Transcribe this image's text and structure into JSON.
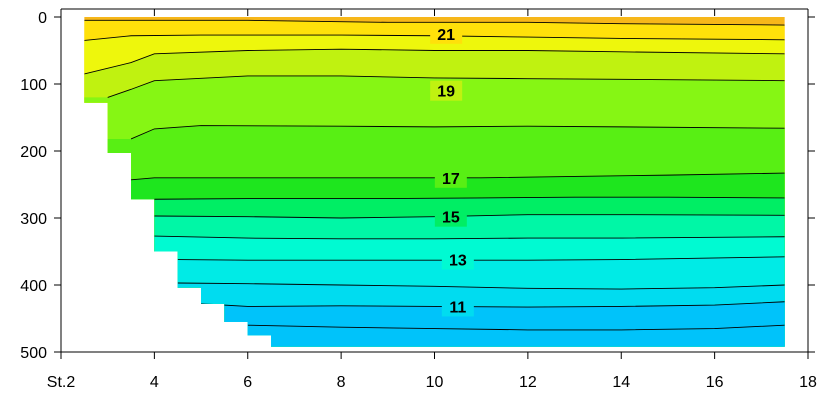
{
  "chart_data": {
    "type": "heatmap",
    "title": "",
    "xlabel": "",
    "ylabel": "",
    "x_ticks": [
      {
        "value": 2,
        "label": "St.2"
      },
      {
        "value": 4,
        "label": "4"
      },
      {
        "value": 6,
        "label": "6"
      },
      {
        "value": 8,
        "label": "8"
      },
      {
        "value": 10,
        "label": "10"
      },
      {
        "value": 12,
        "label": "12"
      },
      {
        "value": 14,
        "label": "14"
      },
      {
        "value": 16,
        "label": "16"
      },
      {
        "value": 18,
        "label": "18"
      }
    ],
    "y_ticks": [
      {
        "value": 0,
        "label": "0"
      },
      {
        "value": 100,
        "label": "100"
      },
      {
        "value": 200,
        "label": "200"
      },
      {
        "value": 300,
        "label": "300"
      },
      {
        "value": 400,
        "label": "400"
      },
      {
        "value": 500,
        "label": "500"
      }
    ],
    "xlim": [
      2,
      18
    ],
    "ylim": [
      0,
      500
    ],
    "y_inverted": true,
    "grid": false,
    "bottom_profile": [
      [
        2.5,
        128
      ],
      [
        3.0,
        128
      ],
      [
        3.0,
        203
      ],
      [
        3.5,
        203
      ],
      [
        3.5,
        272
      ],
      [
        4.0,
        272
      ],
      [
        4.0,
        350
      ],
      [
        4.5,
        350
      ],
      [
        4.5,
        404
      ],
      [
        5.0,
        404
      ],
      [
        5.0,
        428
      ],
      [
        5.5,
        428
      ],
      [
        5.5,
        455
      ],
      [
        6.0,
        455
      ],
      [
        6.0,
        475
      ],
      [
        6.5,
        475
      ],
      [
        6.5,
        492
      ],
      [
        17.5,
        492
      ]
    ],
    "bands": [
      {
        "range": "above 21",
        "color": "#F7B71A"
      },
      {
        "range": "20-21",
        "color": "#FFE10A"
      },
      {
        "range": "19-20",
        "color": "#EEF70C"
      },
      {
        "range": "18-19",
        "color": "#C0F210"
      },
      {
        "range": "17-18",
        "color": "#86F614"
      },
      {
        "range": "16-17",
        "color": "#58EF14"
      },
      {
        "range": "15-16",
        "color": "#1EE61E"
      },
      {
        "range": "14-15",
        "color": "#00EE64"
      },
      {
        "range": "13-14",
        "color": "#00F7A6"
      },
      {
        "range": "12-13",
        "color": "#00FAD2"
      },
      {
        "range": "11-12",
        "color": "#00EBE6"
      },
      {
        "range": "10-11",
        "color": "#00DCF0"
      },
      {
        "range": "below 10",
        "color": "#00C3FA"
      }
    ],
    "isolines": [
      {
        "value": 21,
        "label": "",
        "points": [
          [
            2.5,
            5
          ],
          [
            6,
            5
          ],
          [
            9,
            8
          ],
          [
            12,
            8
          ],
          [
            14,
            10
          ],
          [
            17.5,
            12
          ]
        ]
      },
      {
        "value": 20.5,
        "label": "21",
        "points": [
          [
            2.5,
            35
          ],
          [
            3.5,
            28
          ],
          [
            5,
            27
          ],
          [
            8,
            27
          ],
          [
            10,
            28
          ],
          [
            12,
            30
          ],
          [
            14,
            32
          ],
          [
            17.5,
            34
          ]
        ]
      },
      {
        "value": 20,
        "label": "",
        "points": [
          [
            2.5,
            85
          ],
          [
            3.5,
            68
          ],
          [
            4,
            55
          ],
          [
            6,
            50
          ],
          [
            8,
            48
          ],
          [
            10,
            50
          ],
          [
            12,
            50
          ],
          [
            14,
            52
          ],
          [
            17.5,
            55
          ]
        ]
      },
      {
        "value": 19,
        "label": "19",
        "points": [
          [
            3,
            120
          ],
          [
            3.5,
            108
          ],
          [
            4,
            95
          ],
          [
            6,
            88
          ],
          [
            8,
            88
          ],
          [
            10,
            91
          ],
          [
            12,
            92
          ],
          [
            14,
            93
          ],
          [
            17.5,
            95
          ]
        ]
      },
      {
        "value": 18,
        "label": "",
        "points": [
          [
            3.5,
            182
          ],
          [
            4,
            167
          ],
          [
            5,
            162
          ],
          [
            8,
            163
          ],
          [
            10,
            164
          ],
          [
            12,
            163
          ],
          [
            14,
            164
          ],
          [
            17.5,
            166
          ]
        ]
      },
      {
        "value": 17,
        "label": "17",
        "points": [
          [
            3.5,
            243
          ],
          [
            4,
            240
          ],
          [
            6,
            240
          ],
          [
            9,
            240
          ],
          [
            11,
            240
          ],
          [
            13,
            238
          ],
          [
            15,
            236
          ],
          [
            17.5,
            233
          ]
        ]
      },
      {
        "value": 16,
        "label": "",
        "points": [
          [
            4,
            272
          ],
          [
            6,
            271
          ],
          [
            9,
            271
          ],
          [
            11,
            270
          ],
          [
            13,
            269
          ],
          [
            15,
            269
          ],
          [
            17.5,
            270
          ]
        ]
      },
      {
        "value": 15,
        "label": "15",
        "points": [
          [
            4,
            297
          ],
          [
            6,
            298
          ],
          [
            8,
            300
          ],
          [
            10,
            298
          ],
          [
            12,
            295
          ],
          [
            14,
            295
          ],
          [
            17.5,
            296
          ]
        ]
      },
      {
        "value": 14,
        "label": "",
        "points": [
          [
            4,
            327
          ],
          [
            6,
            330
          ],
          [
            8,
            331
          ],
          [
            10,
            331
          ],
          [
            12,
            330
          ],
          [
            14,
            330
          ],
          [
            17.5,
            328
          ]
        ]
      },
      {
        "value": 13,
        "label": "13",
        "points": [
          [
            4.5,
            362
          ],
          [
            6,
            363
          ],
          [
            8,
            363
          ],
          [
            10,
            363
          ],
          [
            12,
            363
          ],
          [
            14,
            362
          ],
          [
            17.5,
            358
          ]
        ]
      },
      {
        "value": 12,
        "label": "",
        "points": [
          [
            4.5,
            397
          ],
          [
            6,
            398
          ],
          [
            8,
            400
          ],
          [
            10,
            402
          ],
          [
            12,
            405
          ],
          [
            14,
            406
          ],
          [
            16,
            404
          ],
          [
            17.5,
            400
          ]
        ]
      },
      {
        "value": 11,
        "label": "11",
        "points": [
          [
            5,
            428
          ],
          [
            6,
            432
          ],
          [
            8,
            431
          ],
          [
            10,
            432
          ],
          [
            12,
            433
          ],
          [
            14,
            432
          ],
          [
            16,
            430
          ],
          [
            17.5,
            425
          ]
        ]
      },
      {
        "value": 10,
        "label": "",
        "points": [
          [
            6,
            460
          ],
          [
            8,
            463
          ],
          [
            10,
            465
          ],
          [
            12,
            467
          ],
          [
            14,
            467
          ],
          [
            16,
            465
          ],
          [
            17.5,
            460
          ]
        ]
      }
    ],
    "isoline_label_positions": [
      {
        "label": "21",
        "x": 10.25,
        "y": 25
      },
      {
        "label": "19",
        "x": 10.25,
        "y": 110
      },
      {
        "label": "17",
        "x": 10.35,
        "y": 240
      },
      {
        "label": "15",
        "x": 10.35,
        "y": 298
      },
      {
        "label": "13",
        "x": 10.5,
        "y": 362
      },
      {
        "label": "11",
        "x": 10.5,
        "y": 432
      }
    ]
  }
}
